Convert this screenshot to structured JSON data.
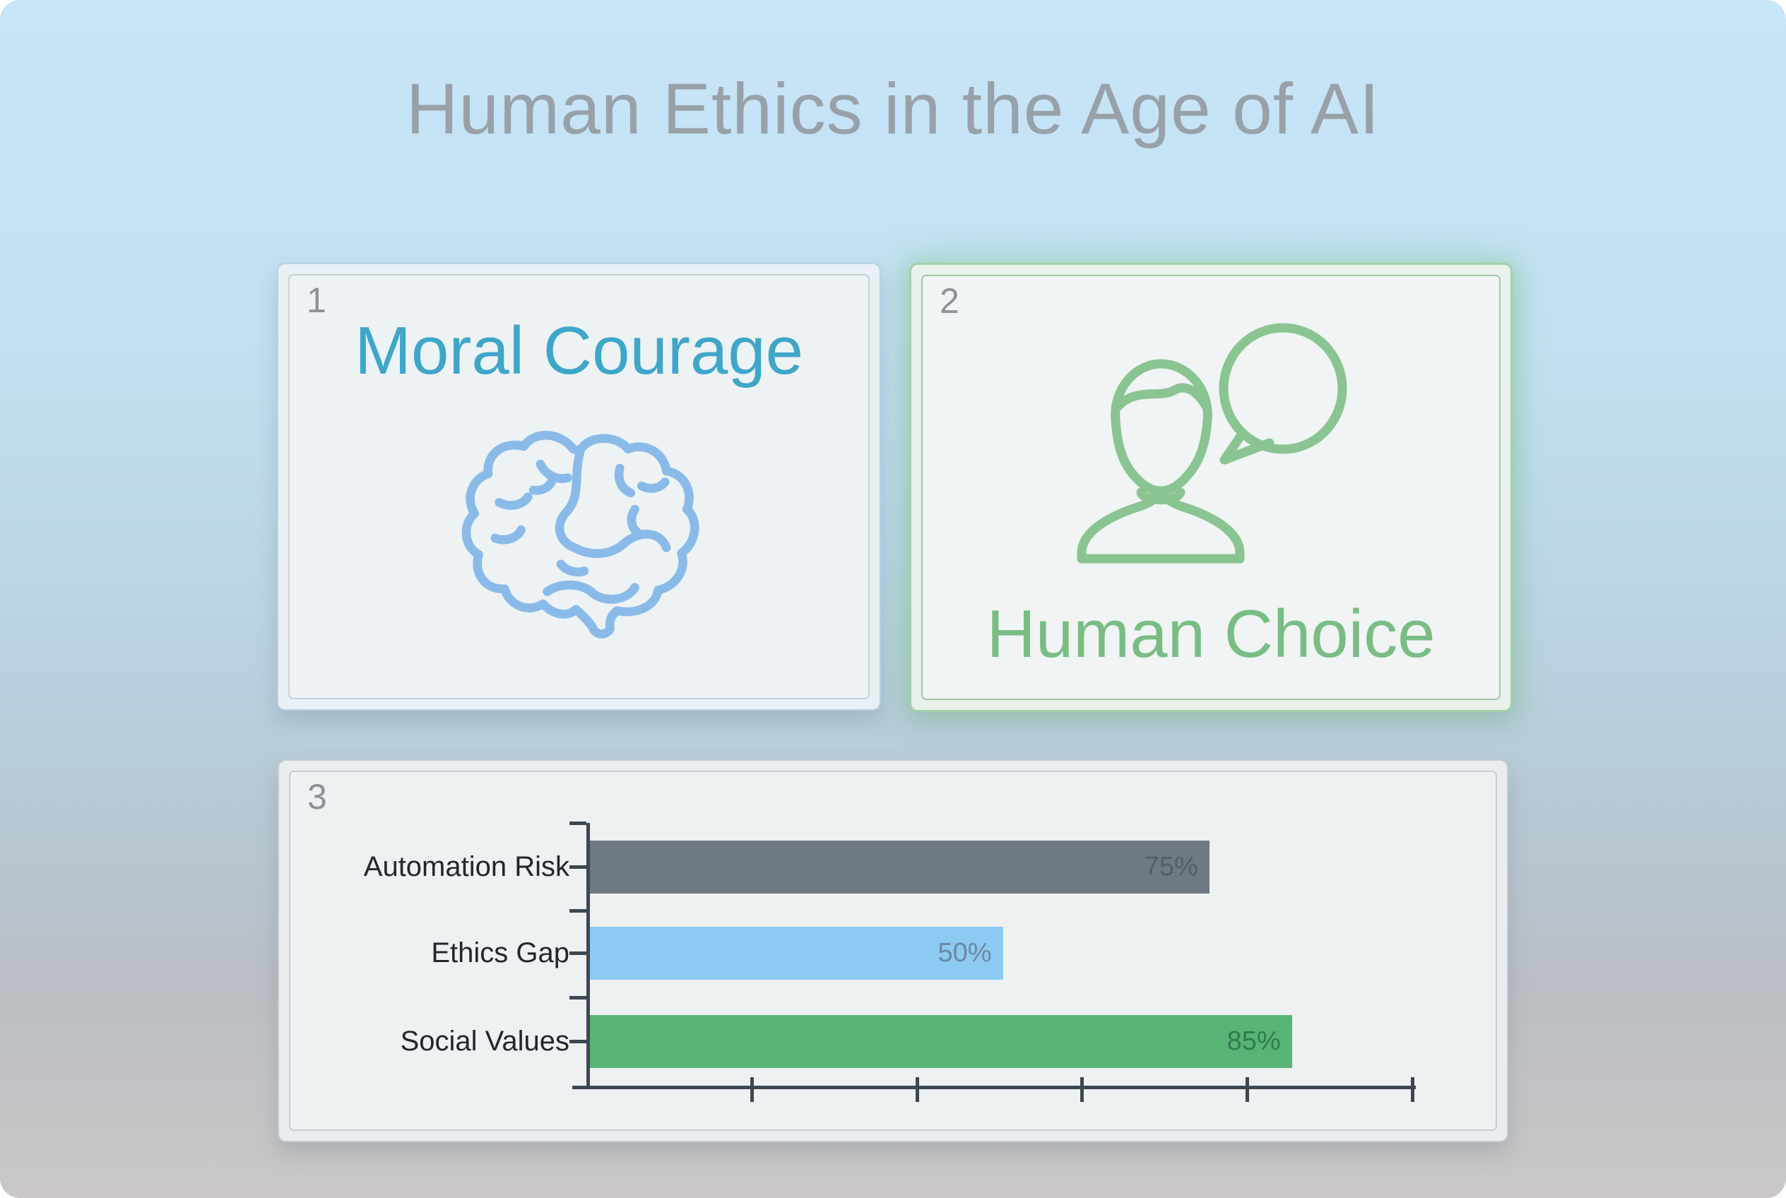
{
  "slide": {
    "title": "Human Ethics in the Age of AI"
  },
  "cards": [
    {
      "number": "1",
      "title": "Moral Courage",
      "icon": "brain-icon",
      "title_color": "#3ea6c9",
      "icon_color": "#8abbe8"
    },
    {
      "number": "2",
      "title": "Human Choice",
      "icon": "person-speech-bubble-icon",
      "title_color": "#79bd84",
      "icon_color": "#8ac492"
    },
    {
      "number": "3",
      "title": "",
      "icon": "bar-chart",
      "title_color": "",
      "icon_color": ""
    }
  ],
  "chart_data": {
    "type": "bar",
    "orientation": "horizontal",
    "title": "",
    "xlabel": "",
    "ylabel": "",
    "categories": [
      "Automation Risk",
      "Ethics Gap",
      "Social Values"
    ],
    "values": [
      75,
      50,
      85
    ],
    "value_labels": [
      "75%",
      "50%",
      "85%"
    ],
    "bar_colors": [
      "#6f7984",
      "#8ccaf1",
      "#58b475"
    ],
    "value_label_colors": [
      "#545e69",
      "#6c87a3",
      "#2f7c4f"
    ],
    "xlim": [
      0,
      100
    ],
    "x_ticks_percent": [
      20,
      40,
      60,
      80,
      100
    ],
    "x_tick_labels_visible": false,
    "grid": false,
    "legend": false,
    "axis_color": "#3c4754",
    "category_label_color": "#23272c"
  }
}
